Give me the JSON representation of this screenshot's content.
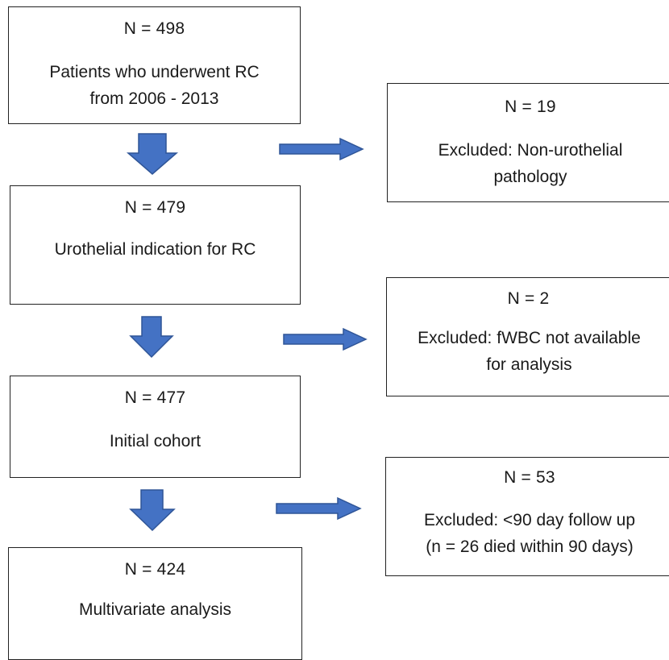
{
  "flow": {
    "steps": [
      {
        "n": "N = 498",
        "lines": [
          "Patients who underwent RC",
          "from 2006 - 2013"
        ]
      },
      {
        "n": "N = 479",
        "lines": [
          "Urothelial indication for RC"
        ]
      },
      {
        "n": "N = 477",
        "lines": [
          "Initial cohort"
        ]
      },
      {
        "n": "N = 424",
        "lines": [
          "Multivariate analysis"
        ]
      }
    ],
    "exclusions": [
      {
        "n": "N = 19",
        "lines": [
          "Excluded: Non-urothelial",
          "pathology"
        ]
      },
      {
        "n": "N = 2",
        "lines": [
          "Excluded:  fWBC not available",
          "for analysis"
        ]
      },
      {
        "n": "N = 53",
        "lines": [
          "Excluded:  <90 day follow up",
          "(n = 26 died within 90 days)"
        ]
      }
    ]
  },
  "colors": {
    "arrow_fill": "#4472c4",
    "arrow_stroke": "#2f5597",
    "border": "#222222"
  }
}
